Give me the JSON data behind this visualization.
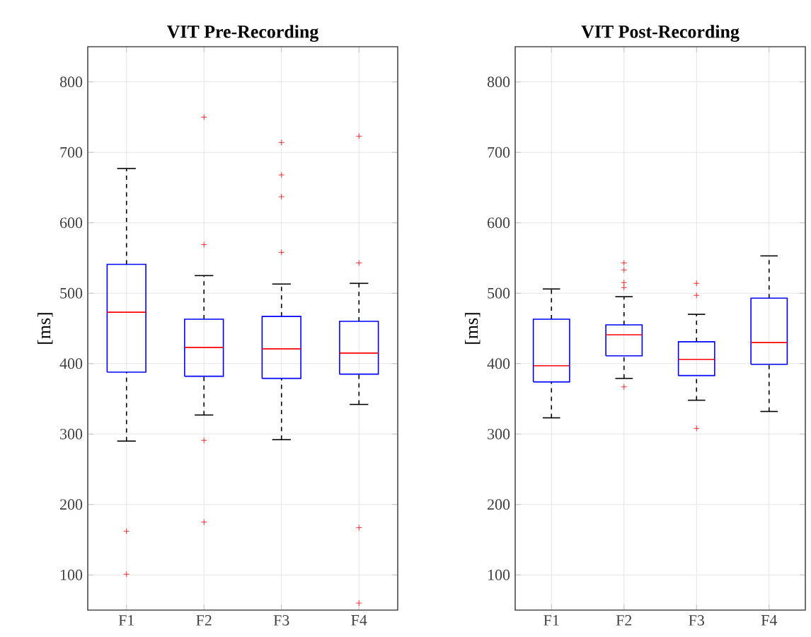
{
  "chart_data": [
    {
      "type": "box",
      "title": "VIT Pre-Recording",
      "ylabel": "[ms]",
      "categories": [
        "F1",
        "F2",
        "F3",
        "F4"
      ],
      "color": "#0000ff",
      "ylim": [
        50,
        850
      ],
      "yticks": [
        100,
        200,
        300,
        400,
        500,
        600,
        700,
        800
      ],
      "grid": true,
      "boxes": [
        {
          "low": 290,
          "q1": 388,
          "median": 473,
          "q3": 541,
          "high": 677,
          "outliers": [
            162,
            101
          ]
        },
        {
          "low": 327,
          "q1": 382,
          "median": 423,
          "q3": 463,
          "high": 525,
          "outliers": [
            750,
            569,
            291,
            175
          ]
        },
        {
          "low": 292,
          "q1": 379,
          "median": 421,
          "q3": 467,
          "high": 513,
          "outliers": [
            714,
            668,
            637,
            558
          ]
        },
        {
          "low": 342,
          "q1": 385,
          "median": 415,
          "q3": 460,
          "high": 514,
          "outliers": [
            723,
            543,
            167,
            60
          ]
        }
      ]
    },
    {
      "type": "box",
      "title": "VIT Post-Recording",
      "ylabel": "[ms]",
      "categories": [
        "F1",
        "F2",
        "F3",
        "F4"
      ],
      "color": "#0000ff",
      "ylim": [
        50,
        850
      ],
      "yticks": [
        100,
        200,
        300,
        400,
        500,
        600,
        700,
        800
      ],
      "grid": true,
      "boxes": [
        {
          "low": 323,
          "q1": 374,
          "median": 397,
          "q3": 463,
          "high": 506
        },
        {
          "low": 379,
          "q1": 411,
          "median": 441,
          "q3": 455,
          "high": 495,
          "outliers": [
            543,
            533,
            515,
            508,
            367
          ]
        },
        {
          "low": 348,
          "q1": 383,
          "median": 406,
          "q3": 431,
          "high": 470,
          "outliers": [
            514,
            497,
            308
          ]
        },
        {
          "low": 332,
          "q1": 399,
          "median": 430,
          "q3": 493,
          "high": 553
        }
      ]
    }
  ]
}
